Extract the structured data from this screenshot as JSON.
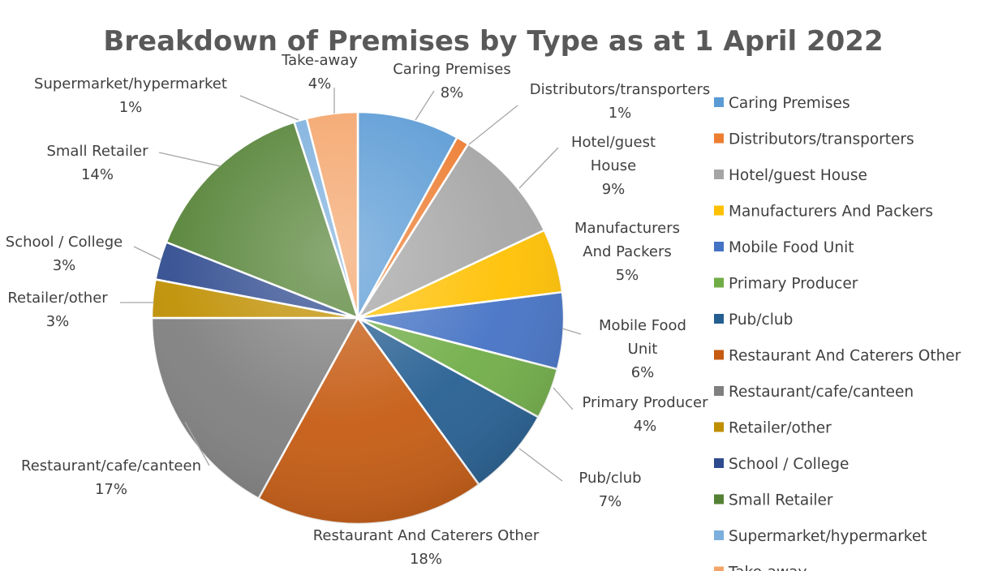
{
  "chart_data": {
    "type": "pie",
    "title": "Breakdown of Premises by Type as at 1 April 2022",
    "legend_position": "right",
    "slices": [
      {
        "label": "Caring Premises",
        "percent_label": "8%",
        "value": 8,
        "color": "#5B9BD5"
      },
      {
        "label": "Distributors/transporters",
        "percent_label": "1%",
        "value": 1,
        "color": "#ED7D31"
      },
      {
        "label": "Hotel/guest House",
        "percent_label": "9%",
        "value": 9,
        "color": "#A5A5A5"
      },
      {
        "label": "Manufacturers And Packers",
        "percent_label": "5%",
        "value": 5,
        "color": "#FFC000"
      },
      {
        "label": "Mobile Food Unit",
        "percent_label": "6%",
        "value": 6,
        "color": "#4472C4"
      },
      {
        "label": "Primary Producer",
        "percent_label": "4%",
        "value": 4,
        "color": "#70AD47"
      },
      {
        "label": "Pub/club",
        "percent_label": "7%",
        "value": 7,
        "color": "#255E91"
      },
      {
        "label": "Restaurant And Caterers Other",
        "percent_label": "18%",
        "value": 18,
        "color": "#C55A11"
      },
      {
        "label": "Restaurant/cafe/canteen",
        "percent_label": "17%",
        "value": 17,
        "color": "#7F7F7F"
      },
      {
        "label": "Retailer/other",
        "percent_label": "3%",
        "value": 3,
        "color": "#BF8F00"
      },
      {
        "label": "School / College",
        "percent_label": "3%",
        "value": 3,
        "color": "#2F4B8F"
      },
      {
        "label": "Small Retailer",
        "percent_label": "14%",
        "value": 14,
        "color": "#548235"
      },
      {
        "label": "Supermarket/hypermarket",
        "percent_label": "1%",
        "value": 1,
        "color": "#7CAFDD"
      },
      {
        "label": "Take-away",
        "percent_label": "4%",
        "value": 4,
        "color": "#F4A46A"
      }
    ]
  }
}
